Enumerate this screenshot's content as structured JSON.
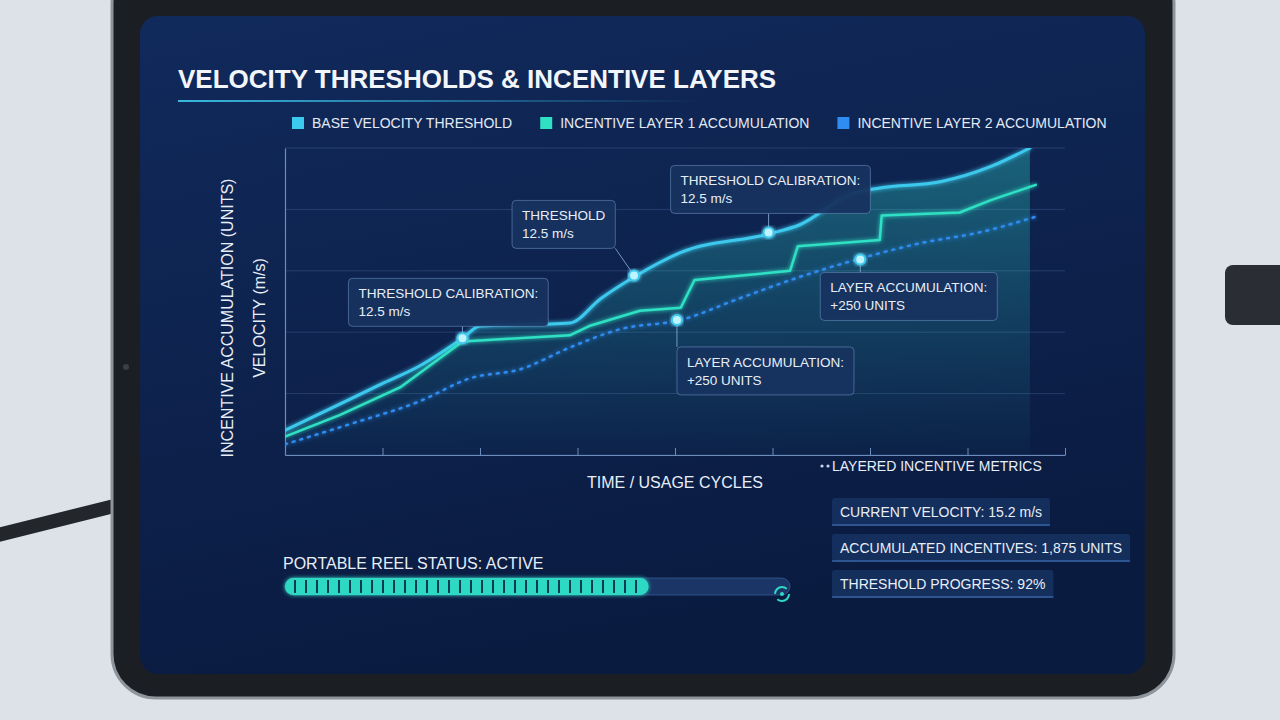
{
  "chart_data": {
    "type": "line",
    "title": "VELOCITY THRESHOLDS & INCENTIVE LAYERS",
    "xlabel": "TIME / USAGE CYCLES",
    "ylabels": [
      "INCENTIVE ACCUMULATION (UNITS)",
      "VELOCITY (m/s)"
    ],
    "xlim": [
      0,
      40
    ],
    "xticks": [
      0,
      5,
      10,
      15,
      20,
      25,
      30,
      35,
      40
    ],
    "ylim": [
      0,
      100
    ],
    "yticks": [
      0,
      20,
      40,
      60,
      80,
      100
    ],
    "grid": "y",
    "tick_labels": false,
    "legend": "top",
    "series": [
      {
        "name": "BASE VELOCITY THRESHOLD",
        "color": "#3cc9ee",
        "line_style": "solid",
        "x": [
          0,
          2.3,
          4.9,
          6.9,
          9.1,
          10,
          14.6,
          16.2,
          17.9,
          20.3,
          24.8,
          26.4,
          29,
          30.5,
          33.6,
          36.2,
          38.2
        ],
        "values": [
          8,
          15,
          23,
          29,
          38,
          42,
          43,
          51,
          58,
          66,
          72,
          75,
          85,
          87,
          89,
          94,
          100
        ]
      },
      {
        "name": "INCENTIVE LAYER 1 ACCUMULATION",
        "color": "#2fe0c4",
        "line_style": "solid",
        "x": [
          0,
          2.8,
          5.9,
          9.1,
          14.6,
          15.6,
          18.2,
          20.3,
          21,
          25.9,
          26.3,
          30.5,
          30.6,
          34.6,
          36.2,
          38.5
        ],
        "values": [
          6,
          13,
          22,
          37,
          39,
          42,
          47,
          48,
          57,
          60,
          68,
          70,
          78,
          79,
          83,
          88
        ]
      },
      {
        "name": "INCENTIVE LAYER 2 ACCUMULATION",
        "color": "#2f8cf0",
        "line_style": "dotted",
        "x": [
          0,
          3.3,
          6.9,
          9.5,
          12.1,
          14.6,
          17.2,
          20.3,
          23.3,
          26.4,
          29.5,
          32.6,
          35.6,
          38.7
        ],
        "values": [
          3.5,
          10,
          17.5,
          25,
          28,
          35,
          41,
          44,
          51,
          58,
          64,
          69,
          72.5,
          78
        ]
      }
    ],
    "annotations": [
      {
        "lines": [
          "THRESHOLD CALIBRATION:",
          "12.5 m/s"
        ],
        "x": 9.1,
        "y": 38
      },
      {
        "lines": [
          "THRESHOLD",
          "12.5 m/s"
        ],
        "x": 17.9,
        "y": 58.5
      },
      {
        "lines": [
          "THRESHOLD CALIBRATION:",
          "12.5 m/s"
        ],
        "x": 24.8,
        "y": 72.5
      },
      {
        "lines": [
          "LAYER ACCUMULATION:",
          "+250 UNITS"
        ],
        "x": 20.1,
        "y": 44
      },
      {
        "lines": [
          "LAYER ACCUMULATION:",
          "+250 UNITS"
        ],
        "x": 29.5,
        "y": 63.7
      }
    ]
  },
  "status": {
    "label": "PORTABLE REEL STATUS: ACTIVE",
    "progress": 72,
    "progress_range": [
      0,
      100
    ]
  },
  "metrics": {
    "title": "LAYERED INCENTIVE METRICS",
    "items": [
      "CURRENT VELOCITY: 15.2 m/s",
      "ACCUMULATED INCENTIVES: 1,875 UNITS",
      "THRESHOLD PROGRESS: 92%"
    ]
  }
}
